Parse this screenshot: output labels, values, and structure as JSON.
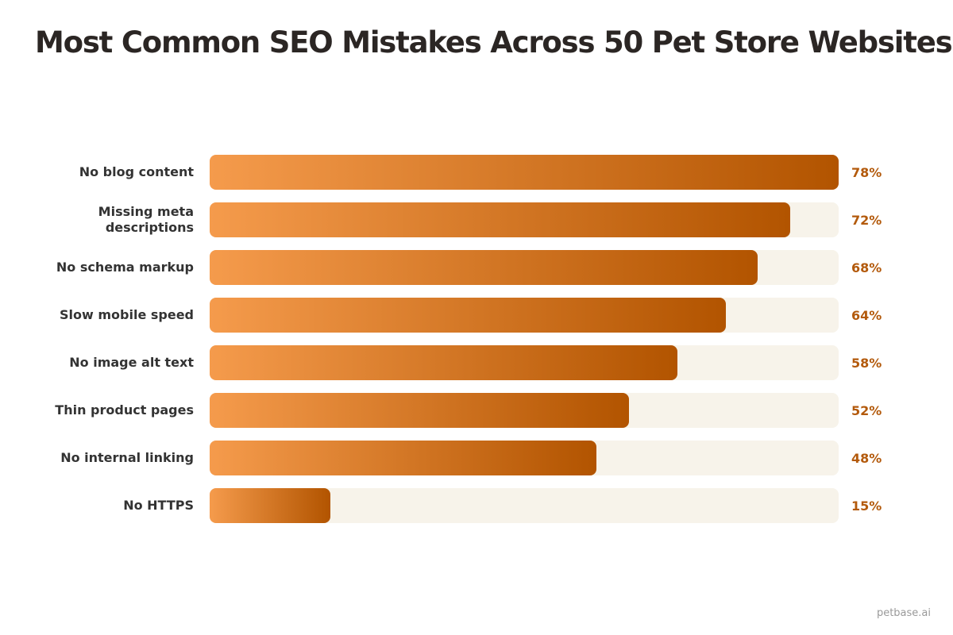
{
  "chart_data": {
    "type": "bar",
    "orientation": "horizontal",
    "title": "Most Common SEO Mistakes Across 50 Pet Store Websites",
    "categories": [
      "No blog content",
      "Missing meta descriptions",
      "No schema markup",
      "Slow mobile speed",
      "No image alt text",
      "Thin product pages",
      "No internal linking",
      "No HTTPS"
    ],
    "values": [
      78,
      72,
      68,
      64,
      58,
      52,
      48,
      15
    ],
    "value_labels": [
      "78%",
      "72%",
      "68%",
      "64%",
      "58%",
      "52%",
      "48%",
      "15%"
    ],
    "xlim": [
      0,
      78
    ],
    "color_from": "#f59b4c",
    "color_to": "#b25400",
    "track_color": "#f7f3ea",
    "label_color": "#b35a0c",
    "source": "petbase.ai"
  }
}
